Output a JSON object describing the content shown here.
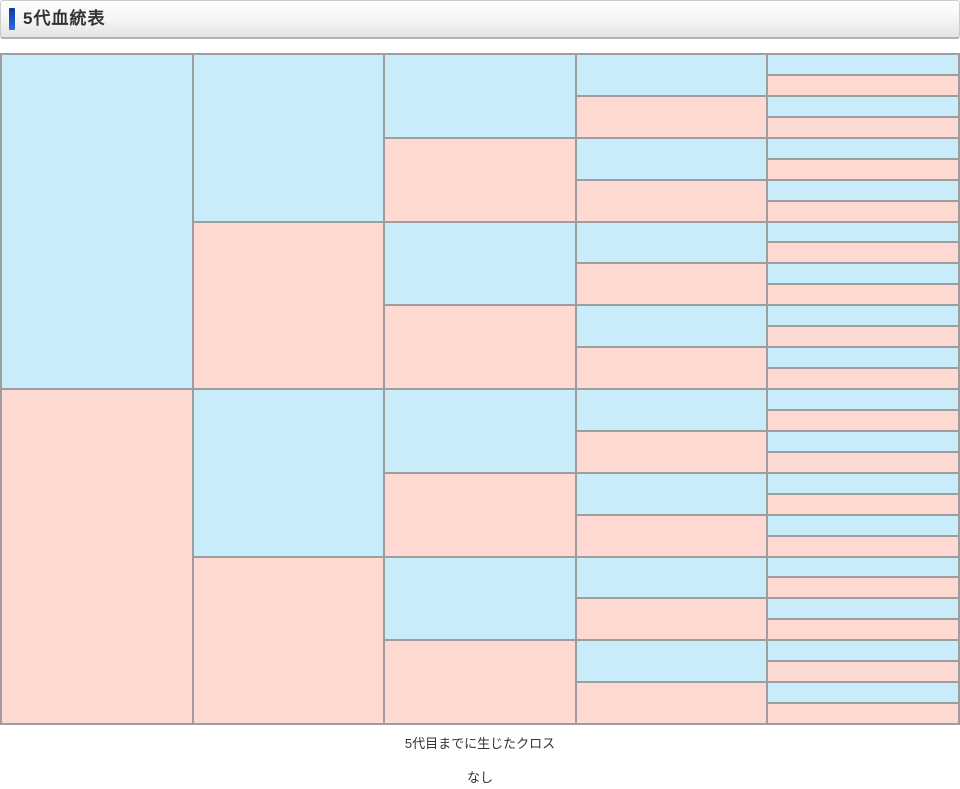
{
  "header": {
    "title": "5代血統表"
  },
  "pedigree": {
    "generations": 5,
    "total_rows": 32,
    "colors": {
      "male": "#c9ecfb",
      "female": "#fdd9d2",
      "border": "#9e9e9e"
    },
    "columns": [
      {
        "generation": 1,
        "cells": "MF"
      },
      {
        "generation": 2,
        "cells": "MFMF"
      },
      {
        "generation": 3,
        "cells": "MFMFMFMF"
      },
      {
        "generation": 4,
        "cells": "MFMFMFMFMFMFMFMF"
      },
      {
        "generation": 5,
        "cells": "MFMFMFMFMFMFMFMFMFMFMFMFMFMFMFMF"
      }
    ]
  },
  "footer": {
    "cross_heading": "5代目までに生じたクロス",
    "cross_value": "なし"
  }
}
